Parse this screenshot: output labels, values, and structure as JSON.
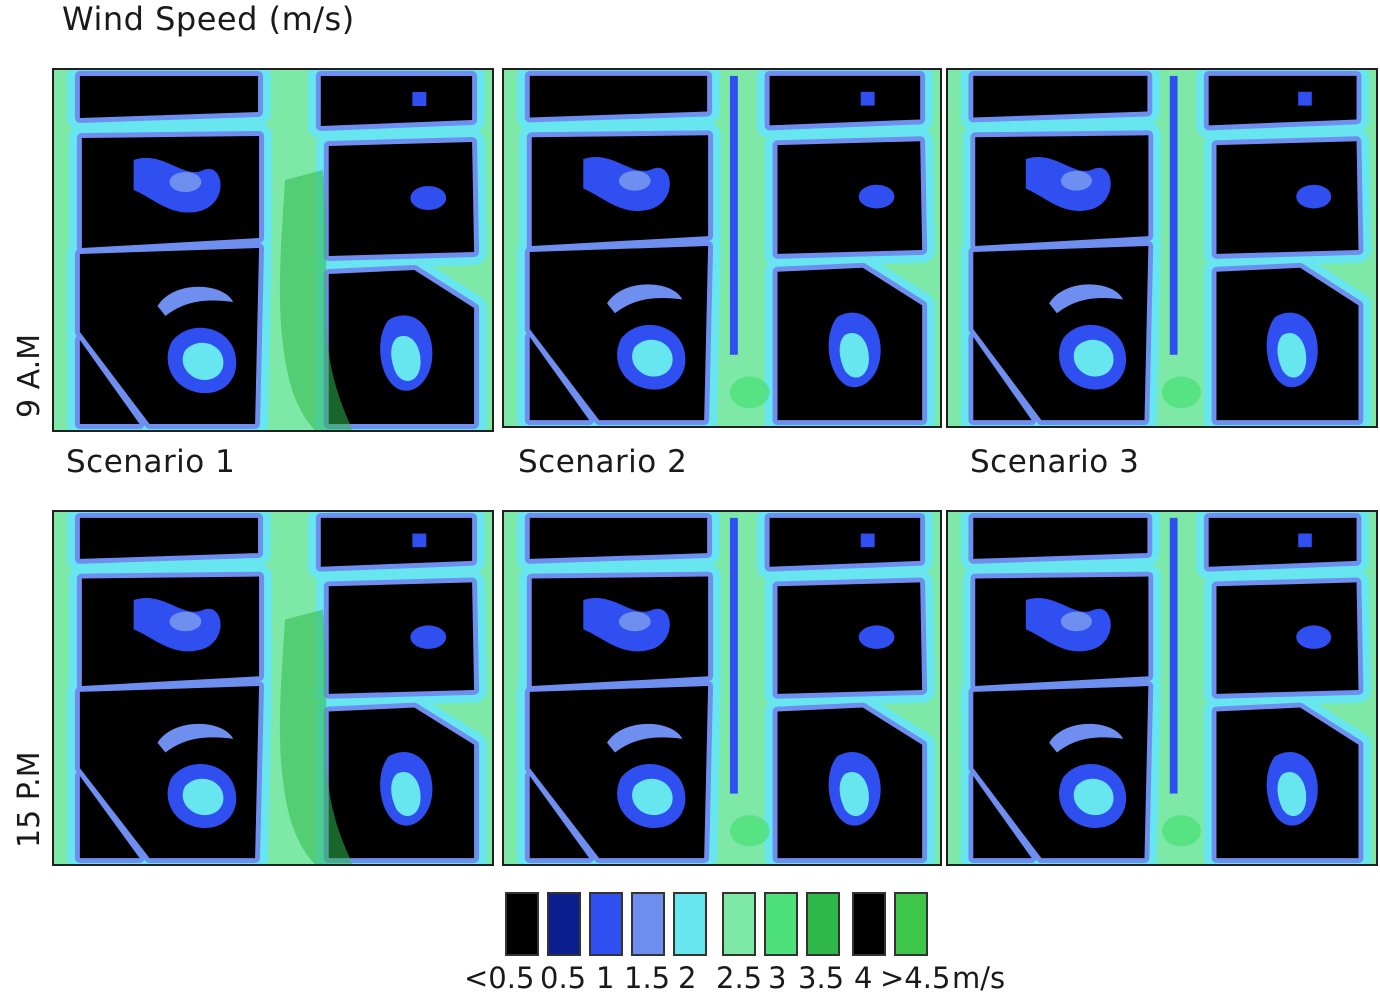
{
  "title": "Wind Speed (m/s)",
  "rows": [
    {
      "label": "9 A.M"
    },
    {
      "label": "15 P.M"
    }
  ],
  "scenarios": [
    {
      "label": "Scenario 1",
      "variant": 1
    },
    {
      "label": "Scenario 2",
      "variant": 2
    },
    {
      "label": "Scenario 3",
      "variant": 3
    }
  ],
  "legend": {
    "colors": [
      "#000000",
      "#0d1f8e",
      "#2f4ff0",
      "#6f8ff0",
      "#68e6f0",
      "#7ee9a6",
      "#4ee07a",
      "#2fb84a",
      "#000000",
      "#3ec64a"
    ],
    "labels": [
      "<0.5",
      "0.5",
      "1",
      "1.5",
      "2",
      "2.5",
      "3",
      "3.5",
      "4",
      ">4.5"
    ],
    "unit": "m/s"
  }
}
